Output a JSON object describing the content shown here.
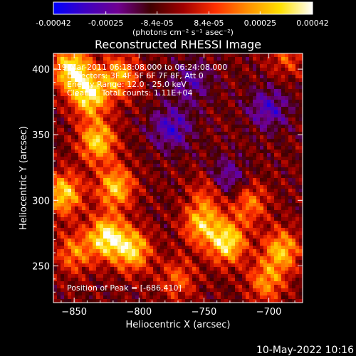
{
  "colorbar": {
    "tick_labels": [
      "-0.00042",
      "-0.00025",
      "-8.4e-05",
      "8.4e-05",
      "0.00025",
      "0.00042"
    ],
    "tick_values": [
      -0.00042,
      -0.00025,
      -8.4e-05,
      8.4e-05,
      0.00025,
      0.00042
    ],
    "range": [
      -0.00042,
      0.00042
    ],
    "units_label": "(photons cm⁻² s⁻¹ asec⁻²)",
    "gradient_colors": [
      "#0000ff",
      "#4000c0",
      "#700090",
      "#400000",
      "#a00000",
      "#ff3000",
      "#ff9000",
      "#ffe000",
      "#ffffff"
    ]
  },
  "chart_data": {
    "type": "heatmap",
    "title": "Reconstructed RHESSI Image",
    "xlabel": "Heliocentric X (arcsec)",
    "ylabel": "Heliocentric Y (arcsec)",
    "xlim": [
      -866,
      -674
    ],
    "ylim": [
      222,
      412
    ],
    "x_ticks": [
      -850,
      -800,
      -750,
      -700
    ],
    "x_tick_labels": [
      "−850",
      "−800",
      "−750",
      "−700"
    ],
    "y_ticks": [
      250,
      300,
      350,
      400
    ],
    "y_tick_labels": [
      "250",
      "300",
      "350",
      "400"
    ],
    "annotations": [
      "19-Mar-2011 06:18:08.000 to 06:24:08.000",
      "Detectors: 3F 4F 5F 6F 7F 8F, Att 0",
      "Energy Range: 12.0 - 25.0 keV",
      "Clean     Total counts: 1.11E+04"
    ],
    "peak_label": "Position of Peak = [-686,410]",
    "peak_position": [
      -686,
      410
    ],
    "blobs": [
      {
        "x": -852,
        "y": 400,
        "v": 1.0
      },
      {
        "x": -838,
        "y": 380,
        "v": 0.95
      },
      {
        "x": -815,
        "y": 395,
        "v": 0.7
      },
      {
        "x": -832,
        "y": 345,
        "v": 0.85
      },
      {
        "x": -858,
        "y": 305,
        "v": 0.85
      },
      {
        "x": -818,
        "y": 310,
        "v": 0.8
      },
      {
        "x": -825,
        "y": 272,
        "v": 1.0
      },
      {
        "x": -805,
        "y": 262,
        "v": 0.85
      },
      {
        "x": -850,
        "y": 260,
        "v": 0.55
      },
      {
        "x": -732,
        "y": 268,
        "v": 0.95
      },
      {
        "x": -752,
        "y": 282,
        "v": 0.75
      },
      {
        "x": -745,
        "y": 308,
        "v": 0.55
      },
      {
        "x": -715,
        "y": 298,
        "v": 0.55
      },
      {
        "x": -690,
        "y": 262,
        "v": 0.75
      },
      {
        "x": -702,
        "y": 238,
        "v": 0.6
      },
      {
        "x": -770,
        "y": 240,
        "v": 0.45
      },
      {
        "x": -686,
        "y": 410,
        "v": 0.4
      }
    ],
    "neg_blobs": [
      {
        "x": -735,
        "y": 315,
        "v": 0.6
      },
      {
        "x": -775,
        "y": 355,
        "v": 0.55
      },
      {
        "x": -700,
        "y": 370,
        "v": 0.5
      },
      {
        "x": -760,
        "y": 390,
        "v": 0.4
      }
    ]
  },
  "footer": {
    "timestamp": "10-May-2022 10:16"
  }
}
